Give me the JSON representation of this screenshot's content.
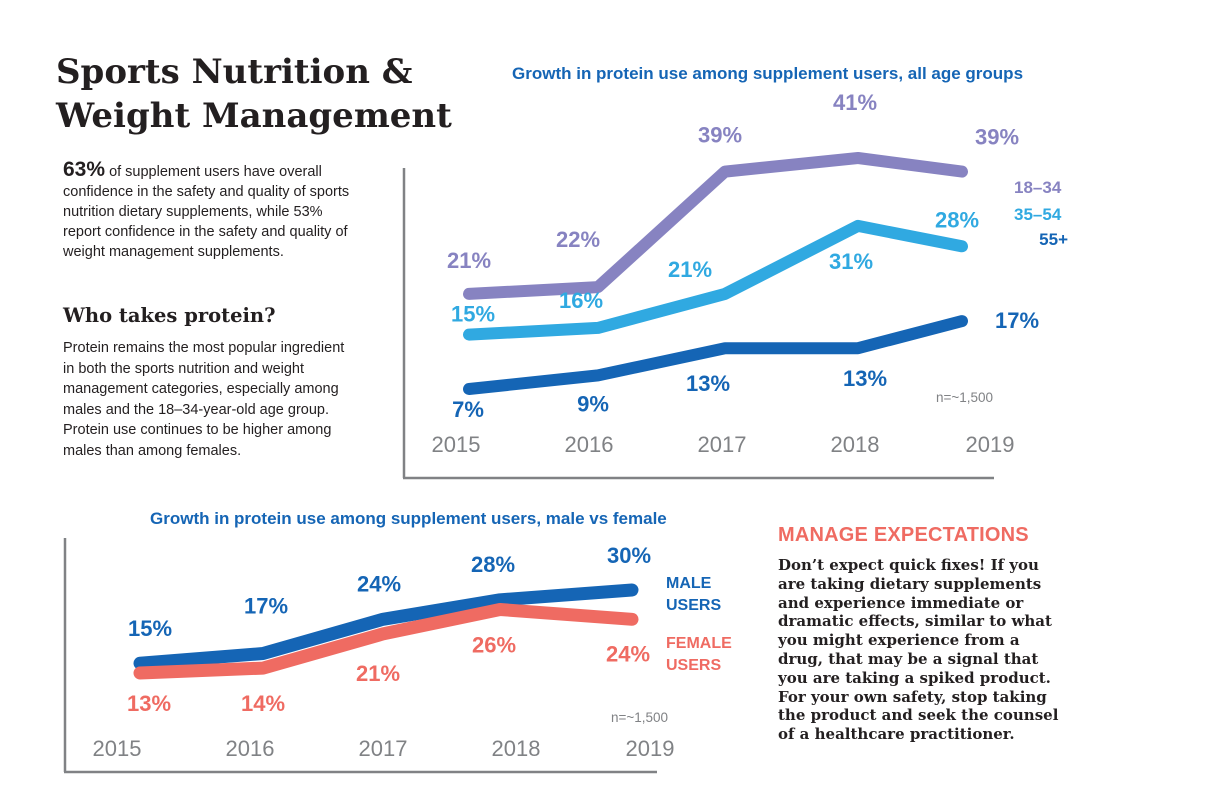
{
  "title": {
    "line1": "Sports Nutrition &",
    "line2": "Weight Management"
  },
  "intro": {
    "highlight": "63%",
    "text": "of supplement users have overall confidence in the safety and quality of sports nutrition dietary supplements, while 53% report confidence in the safety and quality of weight management supplements."
  },
  "protein_section": {
    "heading": "Who takes protein?",
    "text": "Protein remains the most popular ingredient in both the sports nutrition and weight management categories, especially among males and the 18–34-year-old age group. Protein use continues to be higher among males than among females."
  },
  "manage": {
    "heading": "MANAGE EXPECTATIONS",
    "text": "Don’t expect quick fixes! If you are taking dietary supplements and experience immediate or dramatic effects, similar to what you might experience from a drug, that may be a signal that you are taking a spiked product. For your own safety, stop taking the product and seek the counsel of a healthcare practitioner."
  },
  "colors": {
    "age_18_34": "#8783c1",
    "age_35_54": "#30a9e1",
    "age_55_plus": "#1565b5",
    "male": "#1565b5",
    "female": "#ef6b62",
    "axis": "#808285",
    "tick": "#808285"
  },
  "chart_data": [
    {
      "type": "line",
      "title": "Growth in protein use among supplement users, all age groups",
      "x": [
        "2015",
        "2016",
        "2017",
        "2018",
        "2019"
      ],
      "series": [
        {
          "name": "18–34",
          "values": [
            21,
            22,
            39,
            41,
            39
          ],
          "labels": [
            "21%",
            "22%",
            "39%",
            "41%",
            "39%"
          ]
        },
        {
          "name": "35–54",
          "values": [
            15,
            16,
            21,
            31,
            28
          ],
          "labels": [
            "15%",
            "16%",
            "21%",
            "31%",
            "28%"
          ]
        },
        {
          "name": "55+",
          "values": [
            7,
            9,
            13,
            13,
            17
          ],
          "labels": [
            "7%",
            "9%",
            "13%",
            "13%",
            "17%"
          ]
        }
      ],
      "note": "n=~1,500",
      "legend": "right",
      "grid": false
    },
    {
      "type": "line",
      "title": "Growth in protein use among supplement users, male vs female",
      "x": [
        "2015",
        "2016",
        "2017",
        "2018",
        "2019"
      ],
      "series": [
        {
          "name": "MALE USERS",
          "values": [
            15,
            17,
            24,
            28,
            30
          ],
          "labels": [
            "15%",
            "17%",
            "24%",
            "28%",
            "30%"
          ]
        },
        {
          "name": "FEMALE USERS",
          "values": [
            13,
            14,
            21,
            26,
            24
          ],
          "labels": [
            "13%",
            "14%",
            "21%",
            "26%",
            "24%"
          ]
        }
      ],
      "note": "n=~1,500",
      "legend": "right",
      "grid": false
    }
  ]
}
